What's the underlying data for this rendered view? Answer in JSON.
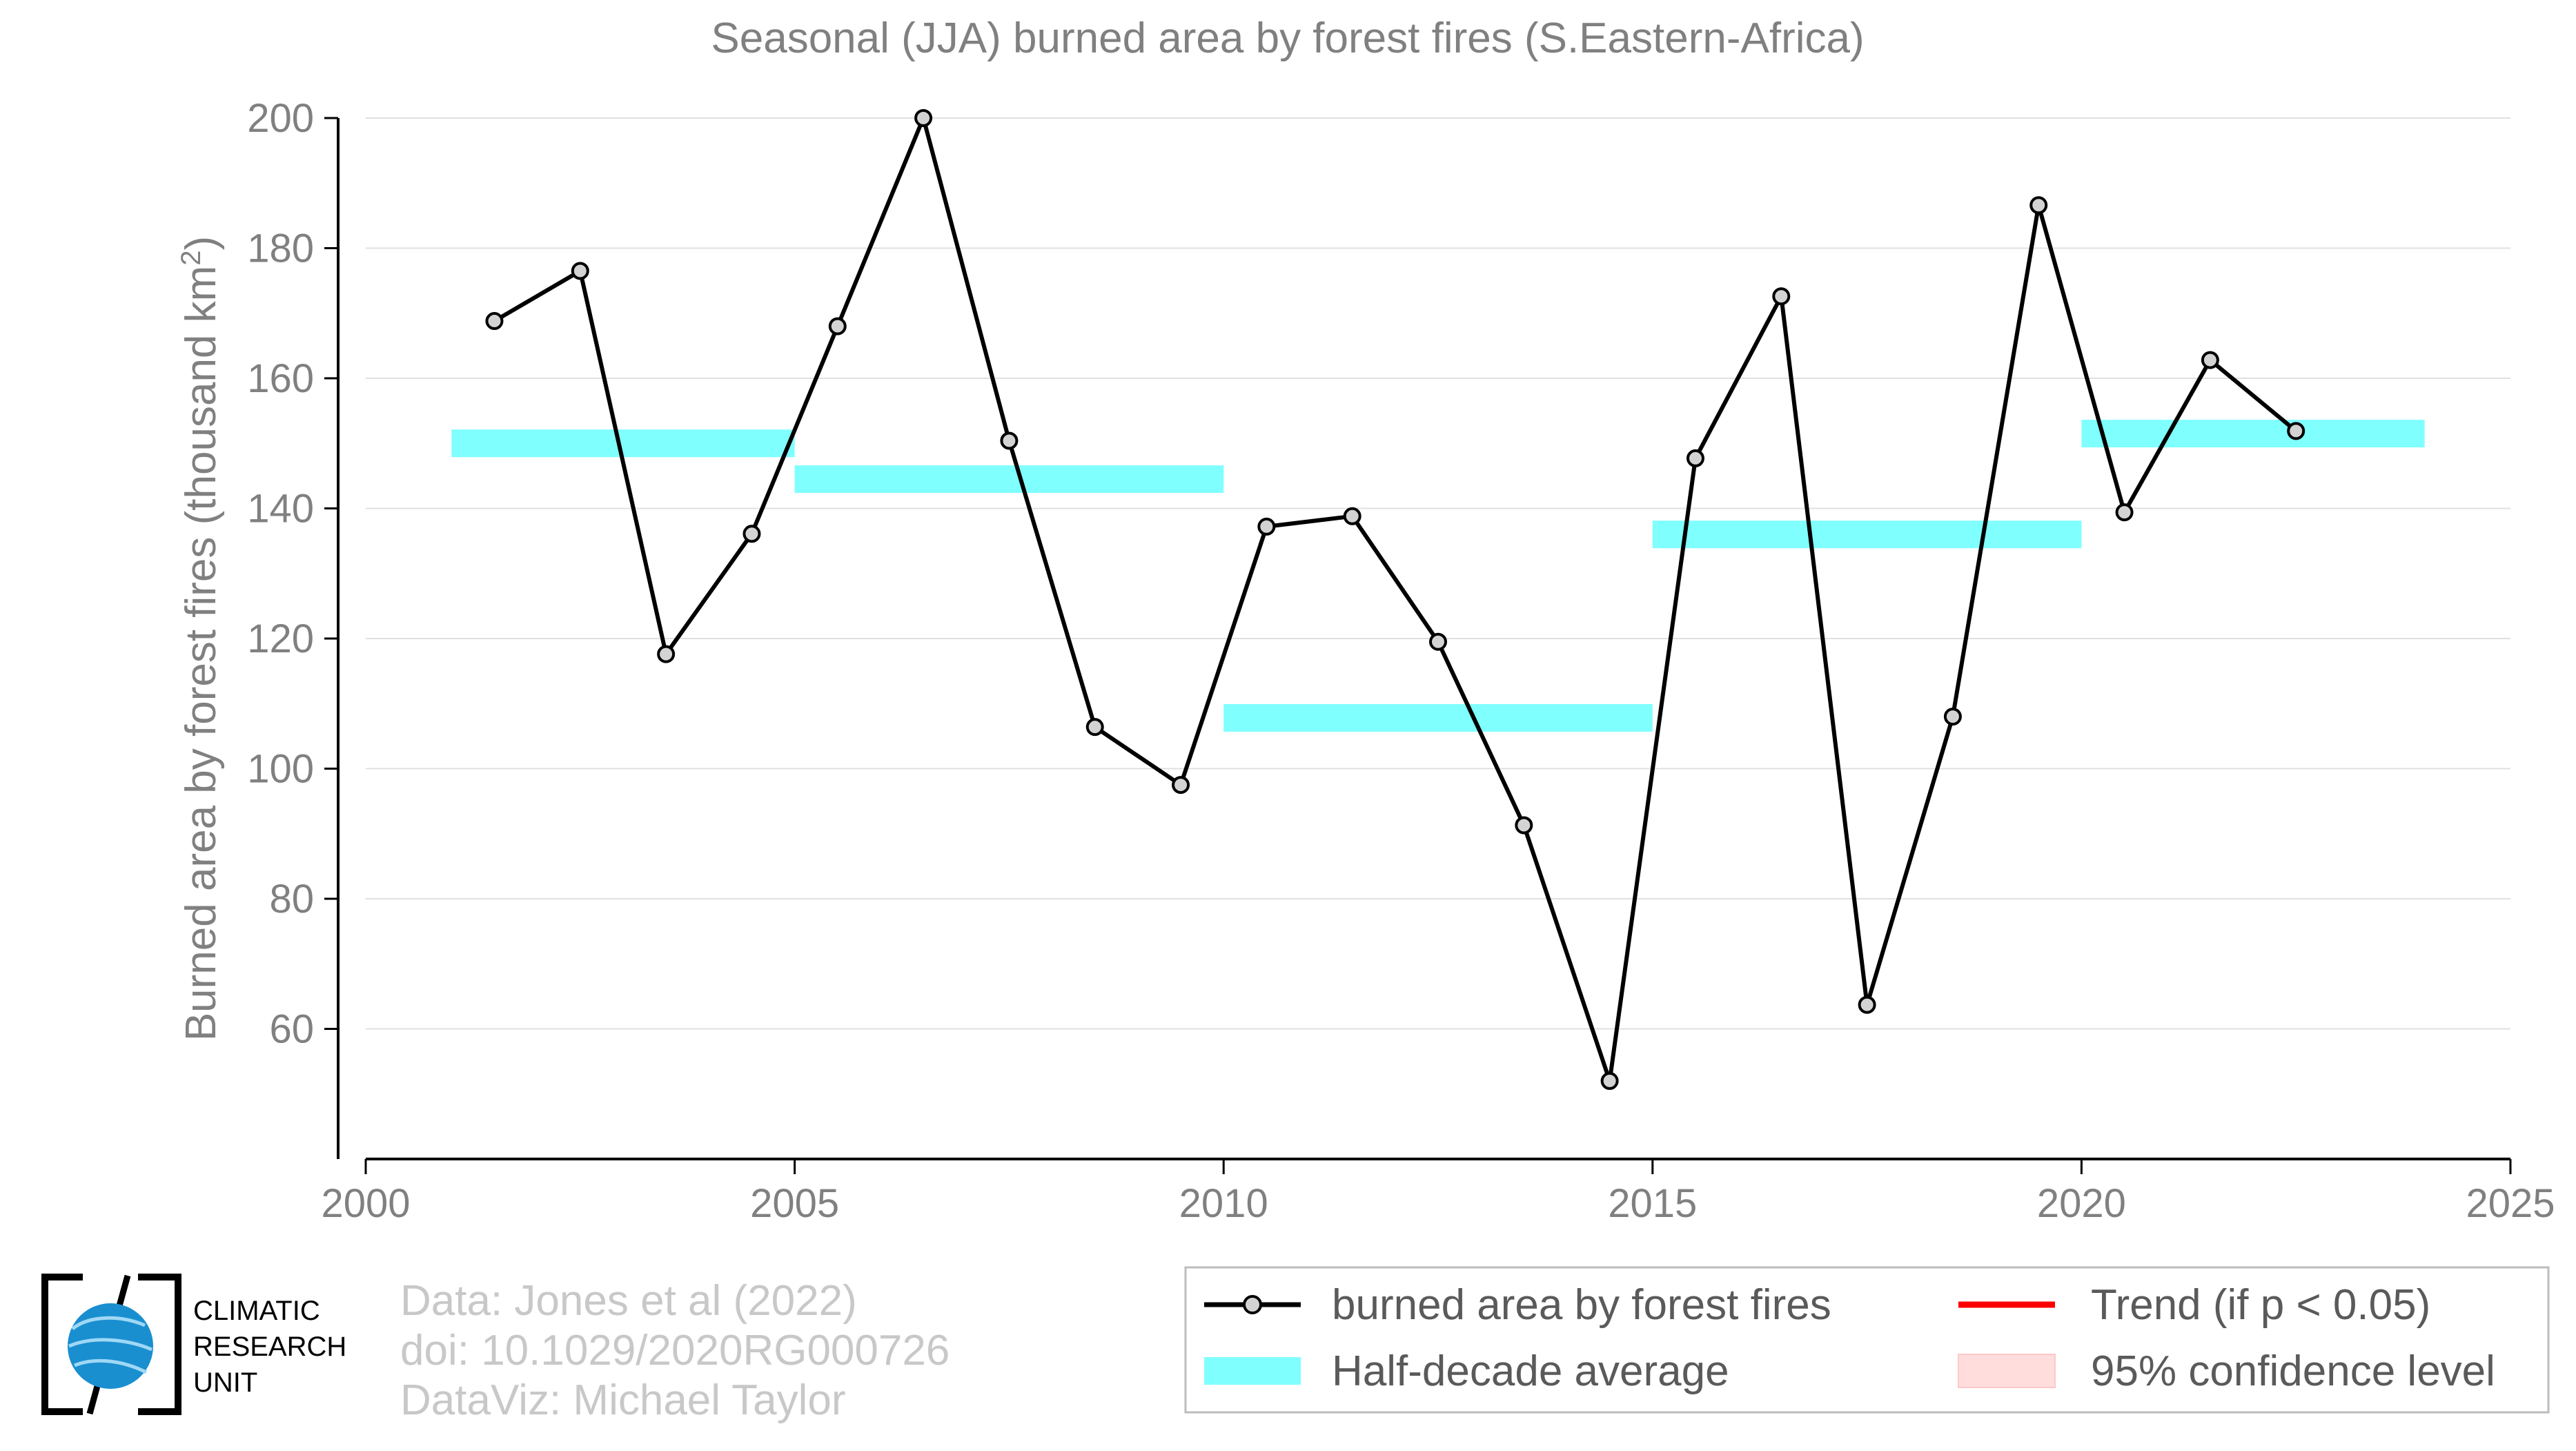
{
  "chart_data": {
    "type": "line",
    "title": "Seasonal (JJA) burned area by forest fires (S.Eastern-Africa)",
    "xlabel": "",
    "ylabel": "Burned area by forest fires (thousand km²)",
    "ylabel_main": "Burned area by forest fires (thousand km",
    "ylabel_sup": "2",
    "ylabel_end": ")",
    "xlim": [
      2000,
      2025
    ],
    "ylim": [
      40,
      200
    ],
    "xticks": [
      "2000",
      "2005",
      "2010",
      "2015",
      "2020",
      "2025"
    ],
    "yticks": [
      "60",
      "80",
      "100",
      "120",
      "140",
      "160",
      "180",
      "200"
    ],
    "grid": true,
    "legend_position": "bottom-right",
    "series": [
      {
        "name": "burned area by forest fires",
        "color": "#000000",
        "x": [
          2001.5,
          2002.5,
          2003.5,
          2004.5,
          2005.5,
          2006.5,
          2007.5,
          2008.5,
          2009.5,
          2010.5,
          2011.5,
          2012.5,
          2013.5,
          2014.5,
          2015.5,
          2016.5,
          2017.5,
          2018.5,
          2019.5,
          2020.5,
          2021.5,
          2022.5
        ],
        "values": [
          168.8,
          176.5,
          117.6,
          136.1,
          168.0,
          200.0,
          150.4,
          106.4,
          97.5,
          137.2,
          138.8,
          119.5,
          91.3,
          52.0,
          147.7,
          172.6,
          63.7,
          108.0,
          186.6,
          139.4,
          162.8,
          151.9
        ]
      }
    ],
    "half_decade_averages": {
      "name": "Half-decade average",
      "color": "#80ffff",
      "segments": [
        {
          "start": 2001,
          "end": 2005,
          "value": 150.0
        },
        {
          "start": 2005,
          "end": 2010,
          "value": 144.5
        },
        {
          "start": 2010,
          "end": 2015,
          "value": 107.8
        },
        {
          "start": 2015,
          "end": 2020,
          "value": 136.0
        },
        {
          "start": 2020,
          "end": 2024,
          "value": 151.5
        }
      ]
    },
    "legend": [
      {
        "label": "burned area by forest fires",
        "kind": "line-marker",
        "color": "#000000"
      },
      {
        "label": "Half-decade average",
        "kind": "band",
        "color": "#80ffff"
      },
      {
        "label": "Trend (if p < 0.05)",
        "kind": "line",
        "color": "#ff0000"
      },
      {
        "label": "95% confidence level",
        "kind": "band",
        "color": "#ffdddd"
      }
    ]
  },
  "credits": {
    "line1": "Data: Jones et al (2022)",
    "line2": "doi: 10.1029/2020RG000726",
    "line3": "DataViz: Michael Taylor"
  },
  "logo": {
    "line1": "CLIMATIC",
    "line2": "RESEARCH",
    "line3": "UNIT",
    "globe_color": "#1a8fd0"
  }
}
